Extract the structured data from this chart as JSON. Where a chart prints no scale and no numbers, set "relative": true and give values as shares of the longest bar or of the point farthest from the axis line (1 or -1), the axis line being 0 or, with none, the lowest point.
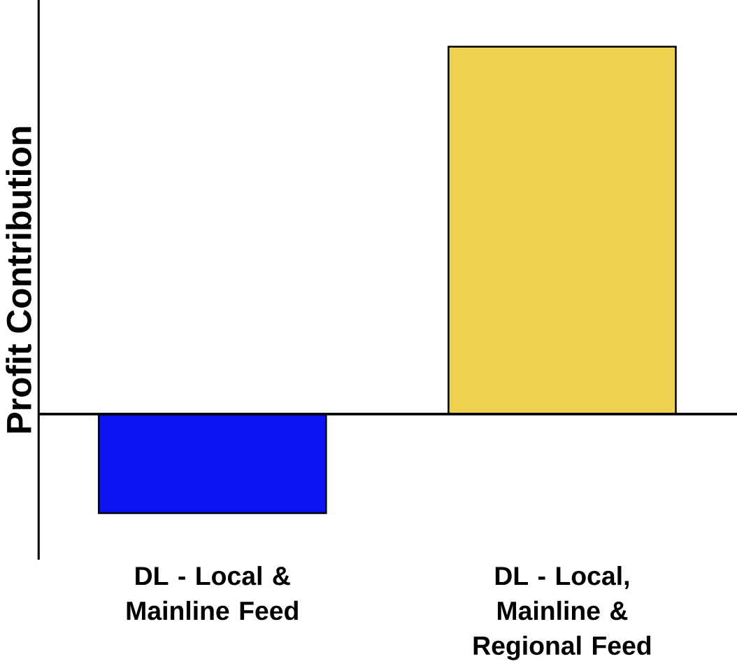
{
  "chart_data": {
    "type": "bar",
    "relative": true,
    "ylabel": "Profit Contribution",
    "categories": [
      "DL - Local & Mainline Feed",
      "DL - Local, Mainline & Regional Feed"
    ],
    "values": [
      -0.27,
      1
    ],
    "colors": [
      "#0a14f0",
      "#f0d050"
    ]
  }
}
